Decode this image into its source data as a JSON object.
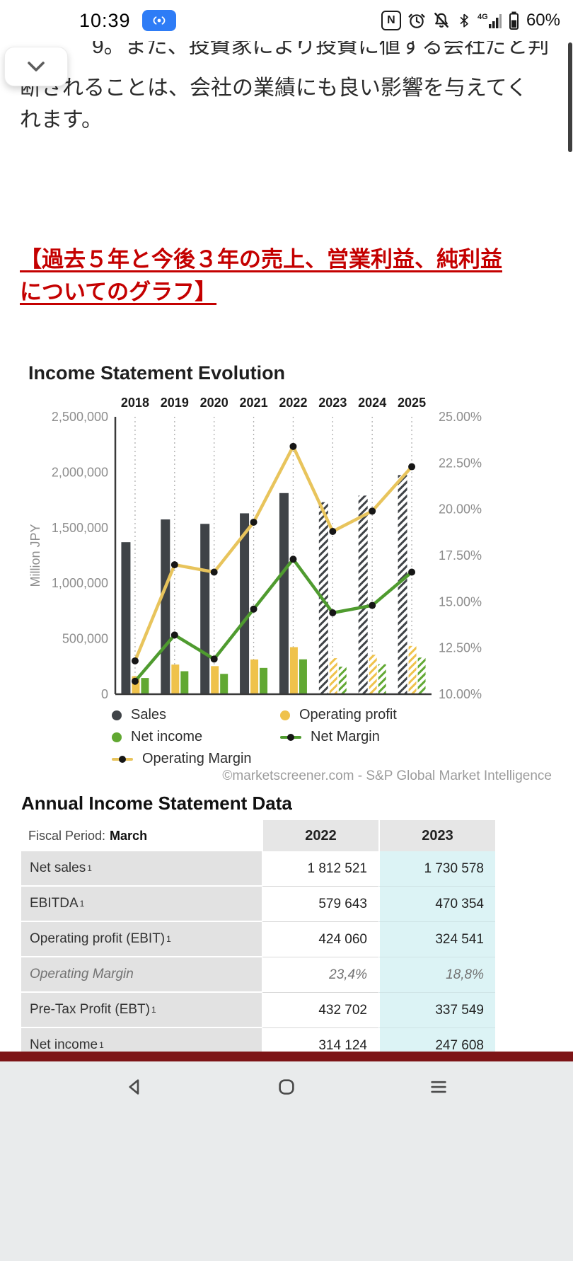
{
  "status_bar": {
    "time": "10:39",
    "battery_percent": "60%",
    "icons": [
      "broadcast",
      "nfc",
      "alarm",
      "mute-bell",
      "bluetooth",
      "signal-4g",
      "battery"
    ]
  },
  "intro": {
    "line1": "9。また、投資家により投資に値する会社だと判",
    "rest": "断されることは、会社の業績にも良い影響を与えてくれます。"
  },
  "heading": {
    "red_title": " 【過去５年と今後３年の売上、営業利益、純利益についてのグラフ】"
  },
  "chart": {
    "title": "Income Statement Evolution",
    "attribution": "©marketscreener.com - S&P Global Market Intelligence",
    "legend": [
      {
        "label": "Sales",
        "type": "dot",
        "color": "#3f4347"
      },
      {
        "label": "Operating profit",
        "type": "dot",
        "color": "#efc24b"
      },
      {
        "label": "Net income",
        "type": "dot",
        "color": "#61a832"
      },
      {
        "label": "Net Margin",
        "type": "linedot",
        "color": "#4f9b2f"
      },
      {
        "label": "Operating Margin",
        "type": "linedot",
        "color": "#e8c45c"
      }
    ]
  },
  "chart_data": {
    "type": "bar",
    "title": "Income Statement Evolution",
    "categories": [
      "2018",
      "2019",
      "2020",
      "2021",
      "2022",
      "2023",
      "2024",
      "2025"
    ],
    "estimate_categories": [
      "2023",
      "2024",
      "2025"
    ],
    "left_axis": {
      "label": "Million JPY",
      "min": 0,
      "max": 2500000,
      "step": 500000
    },
    "right_axis": {
      "min": 10,
      "max": 25,
      "step": 2.5,
      "unit": "%"
    },
    "bar_series": [
      {
        "name": "Sales",
        "color": "#3f4347",
        "values": [
          1370000,
          1575000,
          1535000,
          1630000,
          1812521,
          1730578,
          1790000,
          1975000
        ]
      },
      {
        "name": "Operating profit",
        "color": "#efc24b",
        "values": [
          162000,
          267000,
          253000,
          313000,
          424060,
          324541,
          355000,
          435000
        ]
      },
      {
        "name": "Net income",
        "color": "#61a832",
        "values": [
          146000,
          207000,
          183000,
          237000,
          314124,
          247608,
          270000,
          330000
        ]
      }
    ],
    "line_series": [
      {
        "name": "Operating Margin",
        "color": "#e8c45c",
        "values": [
          11.8,
          17.0,
          16.6,
          19.3,
          23.4,
          18.8,
          19.9,
          22.3
        ]
      },
      {
        "name": "Net Margin",
        "color": "#4f9b2f",
        "values": [
          10.7,
          13.2,
          11.9,
          14.6,
          17.3,
          14.4,
          14.8,
          16.6
        ]
      }
    ],
    "grid": "vertical-dotted",
    "legend_position": "bottom"
  },
  "table": {
    "title": "Annual Income Statement Data",
    "header": {
      "fiscal_label": "Fiscal Period:",
      "fiscal_value": "March",
      "col_2022": "2022",
      "col_2023": "2023"
    },
    "footnote_marker": "1",
    "rows": [
      {
        "label": "Net sales",
        "sup": true,
        "v2022": "1 812 521",
        "v2023": "1 730 578"
      },
      {
        "label": "EBITDA",
        "sup": true,
        "v2022": "579 643",
        "v2023": "470 354"
      },
      {
        "label": "Operating profit (EBIT)",
        "sup": true,
        "v2022": "424 060",
        "v2023": "324 541"
      },
      {
        "label": "Operating Margin",
        "italic": true,
        "v2022": "23,4%",
        "v2023": "18,8%"
      },
      {
        "label": "Pre-Tax Profit (EBT)",
        "sup": true,
        "v2022": "432 702",
        "v2023": "337 549"
      },
      {
        "label": "Net income",
        "sup": true,
        "v2022": "314 124",
        "v2023": "247 608"
      }
    ]
  },
  "nav": {
    "buttons": [
      "back",
      "home",
      "recents"
    ]
  }
}
